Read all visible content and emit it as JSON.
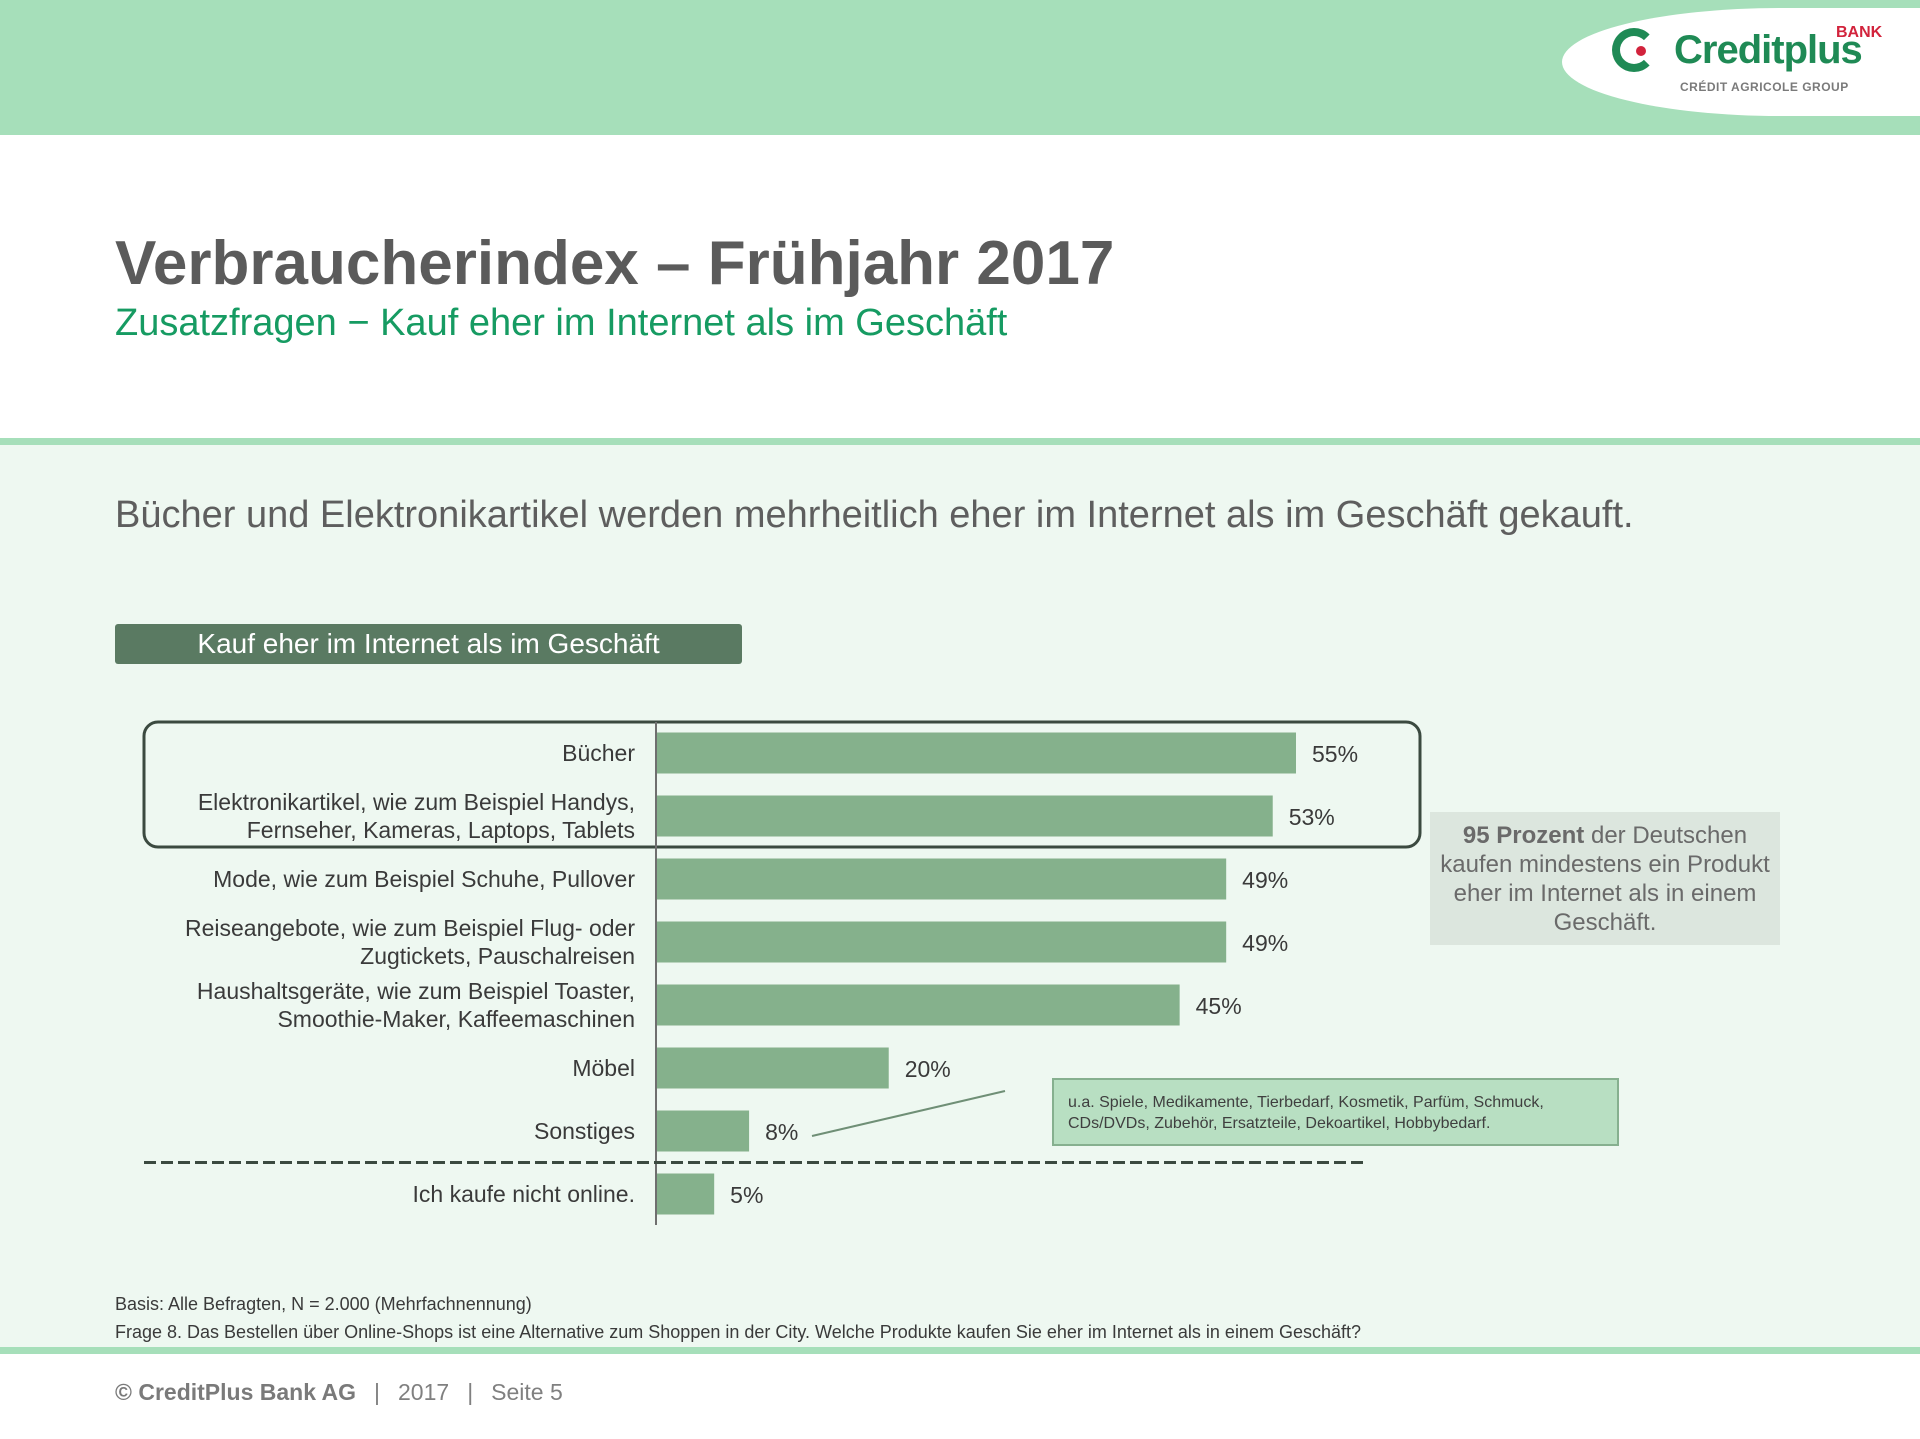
{
  "logo": {
    "name": "Creditplus",
    "bank": "BANK",
    "group": "CRÉDIT AGRICOLE GROUP"
  },
  "header": {
    "title": "Verbraucherindex – Frühjahr 2017",
    "subtitle": "Zusatzfragen − Kauf eher im Internet als im Geschäft"
  },
  "headline": "Bücher und Elektronikartikel werden mehrheitlich eher im Internet als im Geschäft gekauft.",
  "section_label": "Kauf eher im Internet als im Geschäft",
  "colors": {
    "header_band": "#a6dfba",
    "brand_green": "#1f8a55",
    "subtitle_green": "#169b62",
    "bar": "#85b18c",
    "panel_bg": "#eef8f1"
  },
  "chart_data": {
    "type": "bar",
    "orientation": "horizontal",
    "title": "Kauf eher im Internet als im Geschäft",
    "unit": "%",
    "categories": [
      [
        "Bücher"
      ],
      [
        "Elektronikartikel, wie zum Beispiel Handys,",
        "Fernseher, Kameras, Laptops, Tablets"
      ],
      [
        "Mode, wie zum Beispiel Schuhe, Pullover"
      ],
      [
        "Reiseangebote, wie zum Beispiel Flug- oder",
        "Zugtickets, Pauschalreisen"
      ],
      [
        "Haushaltsgeräte, wie zum Beispiel Toaster,",
        "Smoothie-Maker, Kaffeemaschinen"
      ],
      [
        "Möbel"
      ],
      [
        "Sonstiges"
      ],
      [
        "Ich kaufe nicht online."
      ]
    ],
    "values": [
      55,
      53,
      49,
      49,
      45,
      20,
      8,
      5
    ],
    "value_labels": [
      "55%",
      "53%",
      "49%",
      "49%",
      "45%",
      "20%",
      "8%",
      "5%"
    ],
    "xlim": [
      0,
      60
    ],
    "highlighted_categories": [
      "Bücher",
      "Elektronikartikel, wie zum Beispiel Handys, Fernseher, Kameras, Laptops, Tablets"
    ],
    "separator_before": "Ich kaufe nicht online.",
    "grid": false,
    "legend": "none"
  },
  "callout": {
    "bold": "95 Prozent",
    "text": " der Deutschen kaufen mindestens ein Produkt eher im Internet als in einem Geschäft."
  },
  "note": "u.a. Spiele, Medikamente, Tierbedarf, Kosmetik, Parfüm, Schmuck, CDs/DVDs, Zubehör, Ersatzteile, Dekoartikel, Hobbybedarf.",
  "footnotes": {
    "basis": "Basis: Alle Befragten, N = 2.000 (Mehrfachnennung)",
    "question": "Frage 8. Das Bestellen über Online-Shops ist eine Alternative zum Shoppen in der City. Welche Produkte kaufen Sie eher im Internet als in einem Geschäft?"
  },
  "footer": {
    "copyright": "© CreditPlus Bank AG",
    "sep1": "|",
    "year": "2017",
    "sep2": "|",
    "page": "Seite 5"
  }
}
